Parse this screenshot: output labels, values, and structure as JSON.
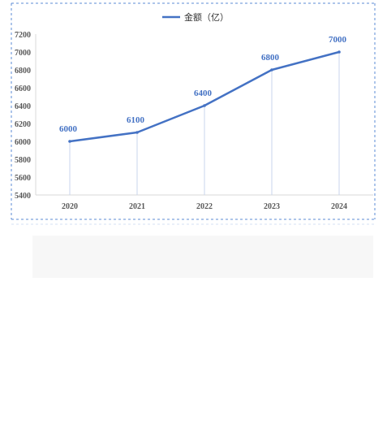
{
  "chart_data": {
    "type": "line",
    "categories": [
      "2020",
      "2021",
      "2022",
      "2023",
      "2024"
    ],
    "series": [
      {
        "name": "金额（亿）",
        "values": [
          6000,
          6100,
          6400,
          6800,
          7000
        ]
      }
    ],
    "data_labels": [
      "6000",
      "6100",
      "6400",
      "6800",
      "7000"
    ],
    "y_ticks": [
      "5400",
      "5600",
      "5800",
      "6000",
      "6200",
      "6400",
      "6600",
      "6800",
      "7000",
      "7200"
    ],
    "ylim": [
      5400,
      7200
    ],
    "title": "",
    "xlabel": "",
    "ylabel": "",
    "legend_position": "top-center",
    "grid": false,
    "colors": {
      "series": "#4472C4",
      "axis_text": "#595959",
      "border": "#5B8BD6"
    }
  }
}
